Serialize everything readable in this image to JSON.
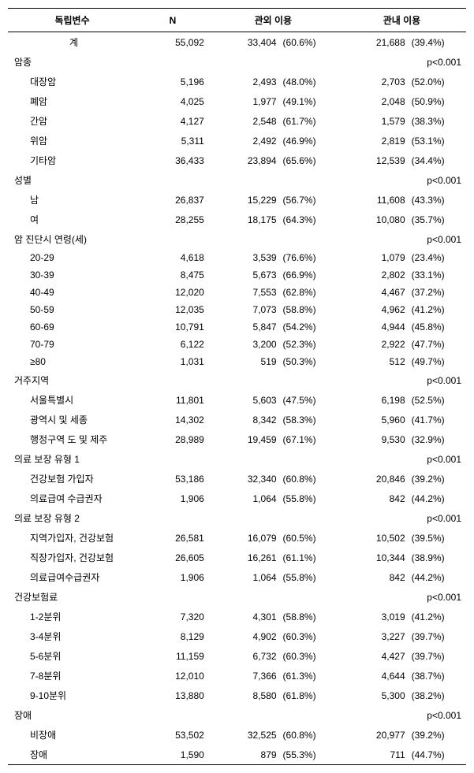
{
  "columns": [
    "독립변수",
    "N",
    "관외 이용",
    "관내 이용"
  ],
  "rows": [
    {
      "type": "total",
      "label": "계",
      "n": "55,092",
      "v1": "33,404",
      "p1": "(60.6%)",
      "v2": "21,688",
      "p2": "(39.4%)"
    },
    {
      "type": "section",
      "label": "암종",
      "pval": "p<0.001"
    },
    {
      "type": "data",
      "label": "대장암",
      "n": "5,196",
      "v1": "2,493",
      "p1": "(48.0%)",
      "v2": "2,703",
      "p2": "(52.0%)"
    },
    {
      "type": "data",
      "label": "폐암",
      "n": "4,025",
      "v1": "1,977",
      "p1": "(49.1%)",
      "v2": "2,048",
      "p2": "(50.9%)"
    },
    {
      "type": "data",
      "label": "간암",
      "n": "4,127",
      "v1": "2,548",
      "p1": "(61.7%)",
      "v2": "1,579",
      "p2": "(38.3%)"
    },
    {
      "type": "data",
      "label": "위암",
      "n": "5,311",
      "v1": "2,492",
      "p1": "(46.9%)",
      "v2": "2,819",
      "p2": "(53.1%)"
    },
    {
      "type": "data",
      "label": "기타암",
      "n": "36,433",
      "v1": "23,894",
      "p1": "(65.6%)",
      "v2": "12,539",
      "p2": "(34.4%)"
    },
    {
      "type": "section",
      "label": "성별",
      "pval": "p<0.001"
    },
    {
      "type": "data",
      "label": "남",
      "n": "26,837",
      "v1": "15,229",
      "p1": "(56.7%)",
      "v2": "11,608",
      "p2": "(43.3%)"
    },
    {
      "type": "data",
      "label": "여",
      "n": "28,255",
      "v1": "18,175",
      "p1": "(64.3%)",
      "v2": "10,080",
      "p2": "(35.7%)"
    },
    {
      "type": "section",
      "label": "암 진단시 연령(세)",
      "pval": "p<0.001"
    },
    {
      "type": "data",
      "label": "20-29",
      "n": "4,618",
      "v1": "3,539",
      "p1": "(76.6%)",
      "v2": "1,079",
      "p2": "(23.4%)"
    },
    {
      "type": "data",
      "label": "30-39",
      "n": "8,475",
      "v1": "5,673",
      "p1": "(66.9%)",
      "v2": "2,802",
      "p2": "(33.1%)"
    },
    {
      "type": "data",
      "label": "40-49",
      "n": "12,020",
      "v1": "7,553",
      "p1": "(62.8%)",
      "v2": "4,467",
      "p2": "(37.2%)"
    },
    {
      "type": "data",
      "label": "50-59",
      "n": "12,035",
      "v1": "7,073",
      "p1": "(58.8%)",
      "v2": "4,962",
      "p2": "(41.2%)"
    },
    {
      "type": "data",
      "label": "60-69",
      "n": "10,791",
      "v1": "5,847",
      "p1": "(54.2%)",
      "v2": "4,944",
      "p2": "(45.8%)"
    },
    {
      "type": "data",
      "label": "70-79",
      "n": "6,122",
      "v1": "3,200",
      "p1": "(52.3%)",
      "v2": "2,922",
      "p2": "(47.7%)"
    },
    {
      "type": "data",
      "label": "≥80",
      "n": "1,031",
      "v1": "519",
      "p1": "(50.3%)",
      "v2": "512",
      "p2": "(49.7%)"
    },
    {
      "type": "section",
      "label": "거주지역",
      "pval": "p<0.001"
    },
    {
      "type": "data",
      "label": "서울특별시",
      "n": "11,801",
      "v1": "5,603",
      "p1": "(47.5%)",
      "v2": "6,198",
      "p2": "(52.5%)"
    },
    {
      "type": "data",
      "label": "광역시 및 세종",
      "n": "14,302",
      "v1": "8,342",
      "p1": "(58.3%)",
      "v2": "5,960",
      "p2": "(41.7%)"
    },
    {
      "type": "data",
      "label": "행정구역 도 및 제주",
      "n": "28,989",
      "v1": "19,459",
      "p1": "(67.1%)",
      "v2": "9,530",
      "p2": "(32.9%)"
    },
    {
      "type": "section",
      "label": "의료 보장 유형 1",
      "pval": "p<0.001"
    },
    {
      "type": "data",
      "label": "건강보험 가입자",
      "n": "53,186",
      "v1": "32,340",
      "p1": "(60.8%)",
      "v2": "20,846",
      "p2": "(39.2%)"
    },
    {
      "type": "data",
      "label": "의료급여 수급권자",
      "n": "1,906",
      "v1": "1,064",
      "p1": "(55.8%)",
      "v2": "842",
      "p2": "(44.2%)"
    },
    {
      "type": "section",
      "label": "의료 보장 유형 2",
      "pval": "p<0.001"
    },
    {
      "type": "data",
      "label": "지역가입자, 건강보험",
      "n": "26,581",
      "v1": "16,079",
      "p1": "(60.5%)",
      "v2": "10,502",
      "p2": "(39.5%)"
    },
    {
      "type": "data",
      "label": "직장가입자, 건강보험",
      "n": "26,605",
      "v1": "16,261",
      "p1": "(61.1%)",
      "v2": "10,344",
      "p2": "(38.9%)"
    },
    {
      "type": "data",
      "label": "의료급여수급권자",
      "n": "1,906",
      "v1": "1,064",
      "p1": "(55.8%)",
      "v2": "842",
      "p2": "(44.2%)"
    },
    {
      "type": "section",
      "label": "건강보험료",
      "pval": "p<0.001"
    },
    {
      "type": "data",
      "label": "1-2분위",
      "n": "7,320",
      "v1": "4,301",
      "p1": "(58.8%)",
      "v2": "3,019",
      "p2": "(41.2%)"
    },
    {
      "type": "data",
      "label": "3-4분위",
      "n": "8,129",
      "v1": "4,902",
      "p1": "(60.3%)",
      "v2": "3,227",
      "p2": "(39.7%)"
    },
    {
      "type": "data",
      "label": "5-6분위",
      "n": "11,159",
      "v1": "6,732",
      "p1": "(60.3%)",
      "v2": "4,427",
      "p2": "(39.7%)"
    },
    {
      "type": "data",
      "label": "7-8분위",
      "n": "12,010",
      "v1": "7,366",
      "p1": "(61.3%)",
      "v2": "4,644",
      "p2": "(38.7%)"
    },
    {
      "type": "data",
      "label": "9-10분위",
      "n": "13,880",
      "v1": "8,580",
      "p1": "(61.8%)",
      "v2": "5,300",
      "p2": "(38.2%)"
    },
    {
      "type": "section",
      "label": "장애",
      "pval": "p<0.001"
    },
    {
      "type": "data",
      "label": "비장애",
      "n": "53,502",
      "v1": "32,525",
      "p1": "(60.8%)",
      "v2": "20,977",
      "p2": "(39.2%)"
    },
    {
      "type": "data",
      "label": "장애",
      "n": "1,590",
      "v1": "879",
      "p1": "(55.3%)",
      "v2": "711",
      "p2": "(44.7%)"
    }
  ]
}
